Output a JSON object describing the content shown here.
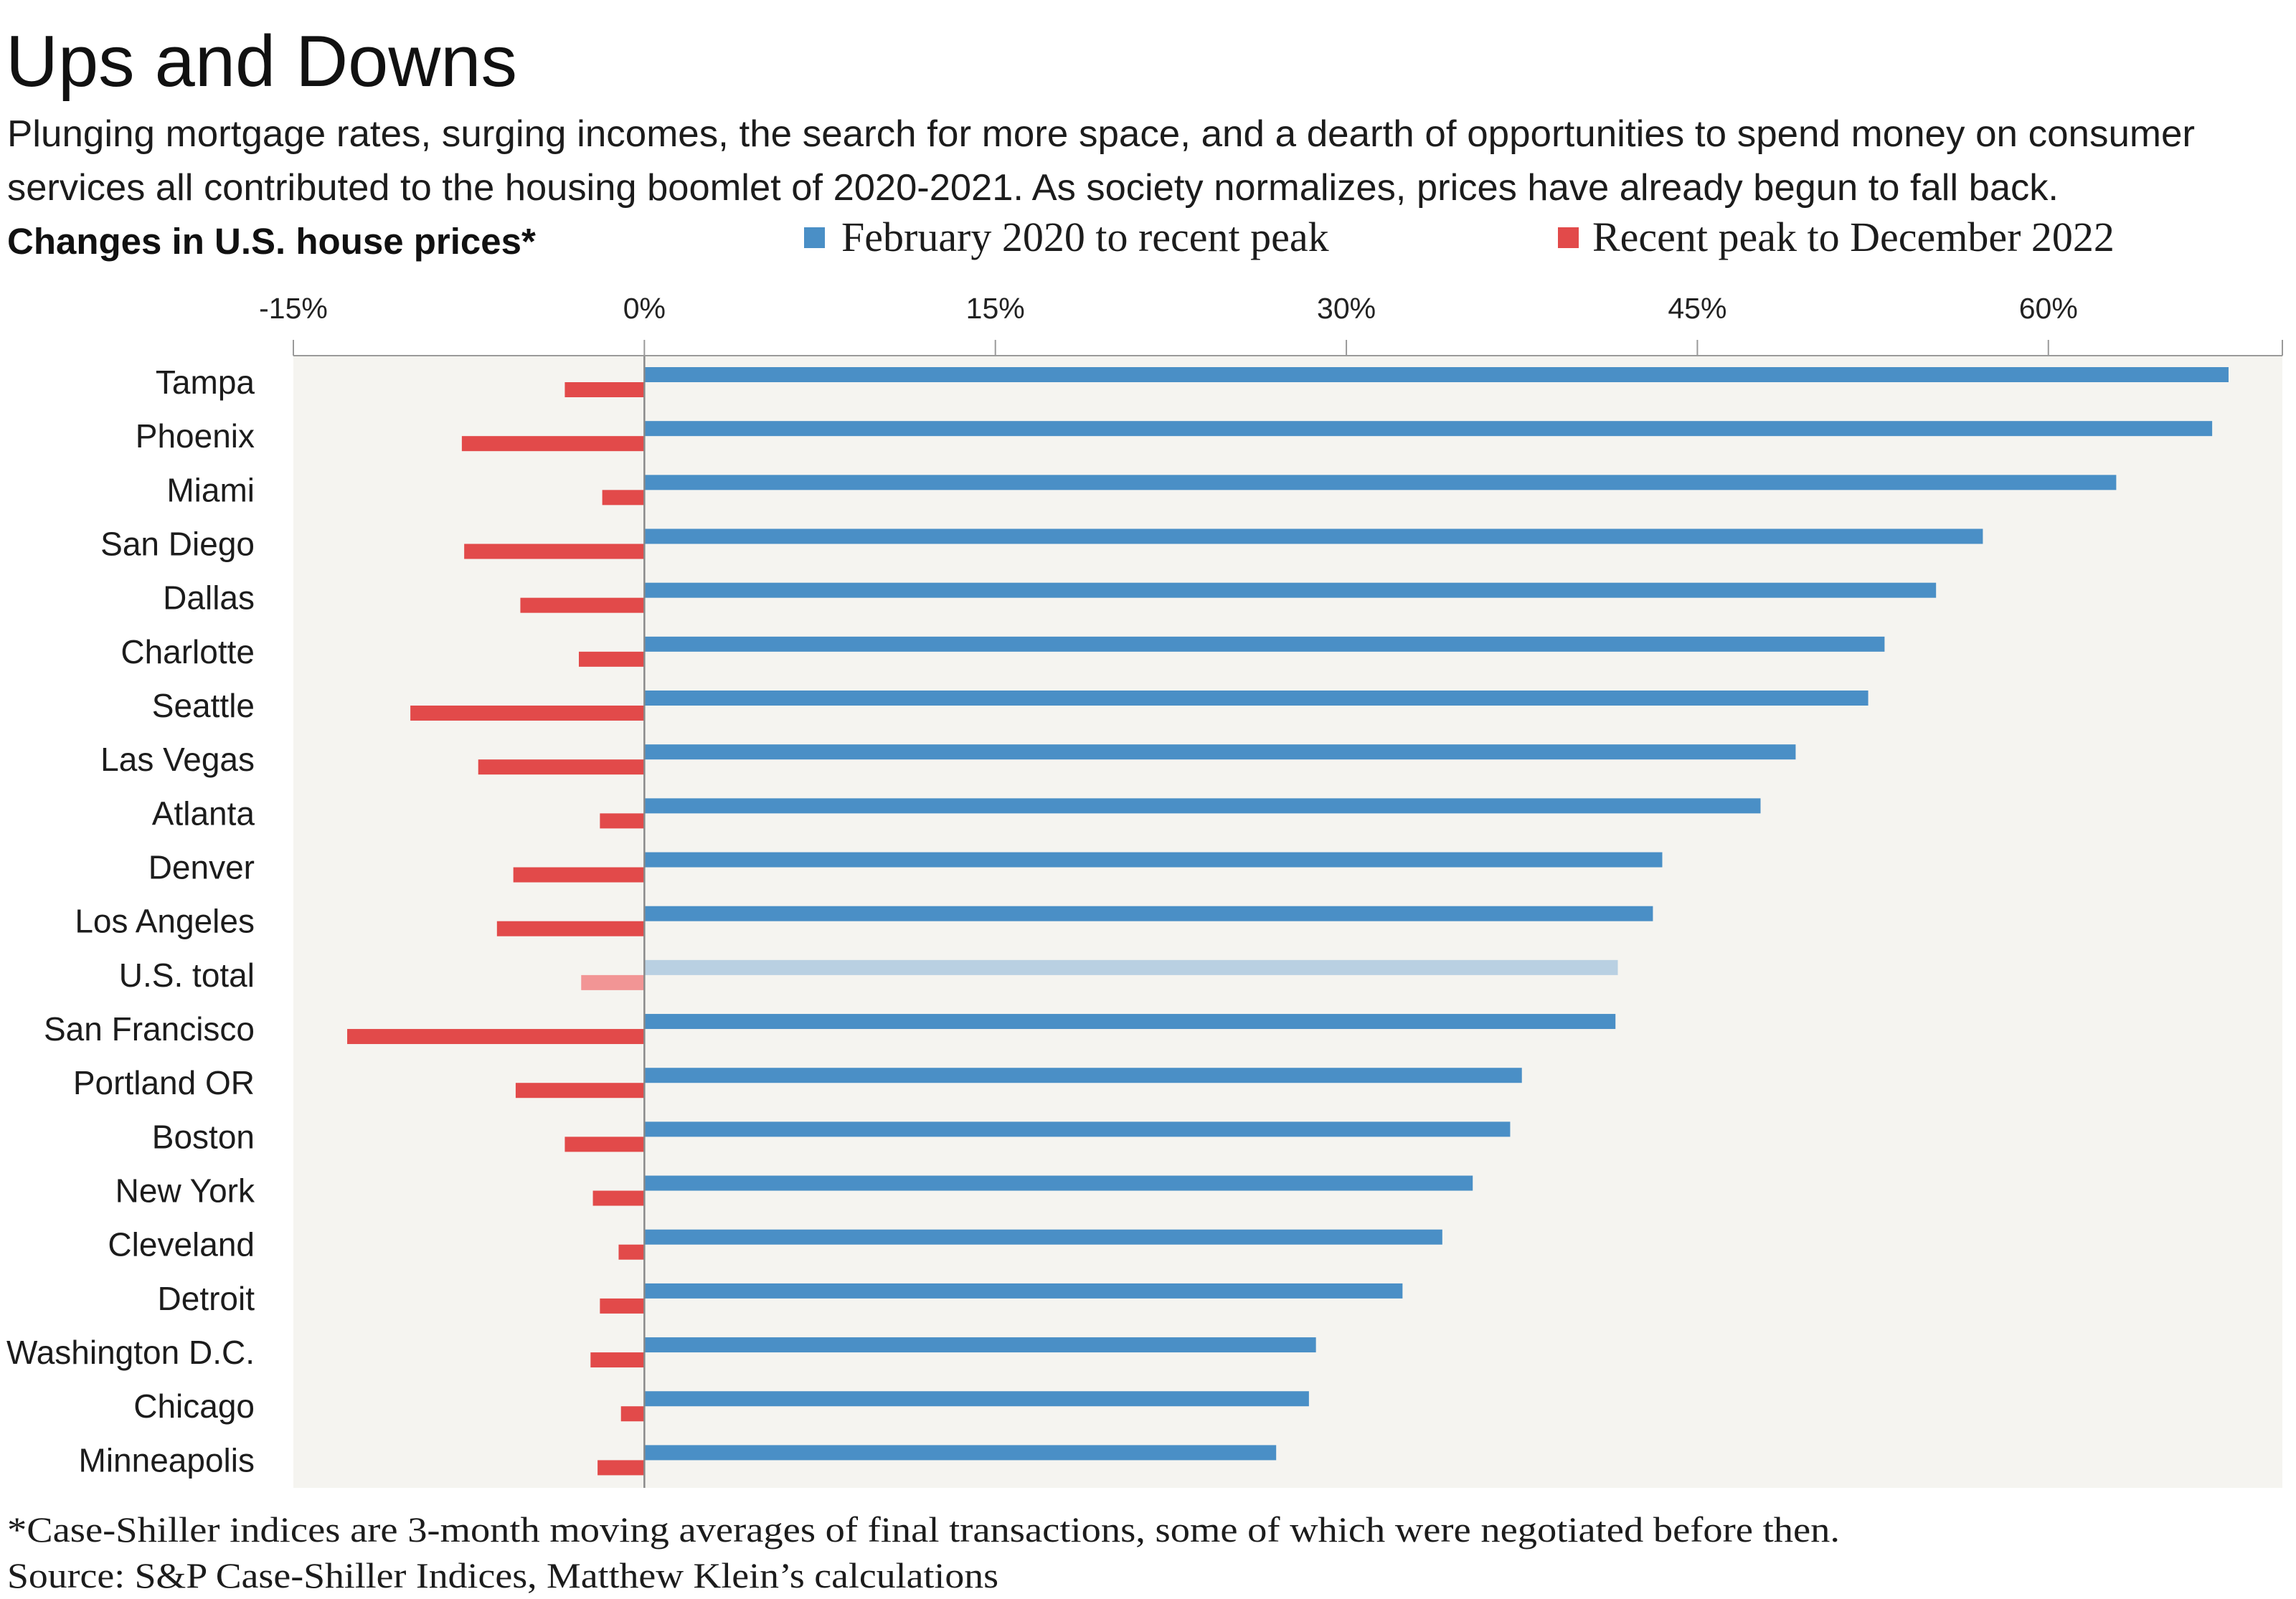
{
  "title": "Ups and Downs",
  "subtitle": [
    "Plunging mortgage rates, surging incomes, the search for more space, and a dearth of opportunities to spend money on consumer",
    "services all contributed to the housing boomlet of 2020-2021. As society normalizes, prices have already begun to fall back."
  ],
  "chart_data": {
    "type": "bar",
    "orientation": "horizontal",
    "title": "Changes in U.S. house prices*",
    "categories": [
      "Tampa",
      "Phoenix",
      "Miami",
      "San Diego",
      "Dallas",
      "Charlotte",
      "Seattle",
      "Las Vegas",
      "Atlanta",
      "Denver",
      "Los Angeles",
      "U.S. total",
      "San Francisco",
      "Portland OR",
      "Boston",
      "New York",
      "Cleveland",
      "Detroit",
      "Washington D.C.",
      "Chicago",
      "Minneapolis"
    ],
    "series": [
      {
        "name": "February 2020 to recent peak",
        "color": "#4a8fc6",
        "highlight_color": "#b9d0e2",
        "values": [
          67.7,
          67.0,
          62.9,
          57.2,
          55.2,
          53.0,
          52.3,
          49.2,
          47.7,
          43.5,
          43.1,
          41.6,
          41.5,
          37.5,
          37.0,
          35.4,
          34.1,
          32.4,
          28.7,
          28.4,
          27.0
        ]
      },
      {
        "name": "Recent peak to December 2022",
        "color": "#e24a4a",
        "highlight_color": "#f29595",
        "values": [
          -3.4,
          -7.8,
          -1.8,
          -7.7,
          -5.3,
          -2.8,
          -10.0,
          -7.1,
          -1.9,
          -5.6,
          -6.3,
          -2.7,
          -12.7,
          -5.5,
          -3.4,
          -2.2,
          -1.1,
          -1.9,
          -2.3,
          -1.0,
          -2.0
        ]
      }
    ],
    "highlighted": [
      false,
      false,
      false,
      false,
      false,
      false,
      false,
      false,
      false,
      false,
      false,
      true,
      false,
      false,
      false,
      false,
      false,
      false,
      false,
      false,
      false
    ],
    "xlim": [
      -15,
      70
    ],
    "x_ticks": [
      -15,
      0,
      15,
      30,
      45,
      60
    ],
    "x_tick_labels": [
      "-15%",
      "0%",
      "15%",
      "30%",
      "45%",
      "60%"
    ],
    "grid": false
  },
  "footnotes": [
    "*Case-Shiller indices are 3-month moving averages of final transactions, some of which were negotiated before then.",
    "Source: S&P Case-Shiller Indices, Matthew Klein’s calculations"
  ]
}
